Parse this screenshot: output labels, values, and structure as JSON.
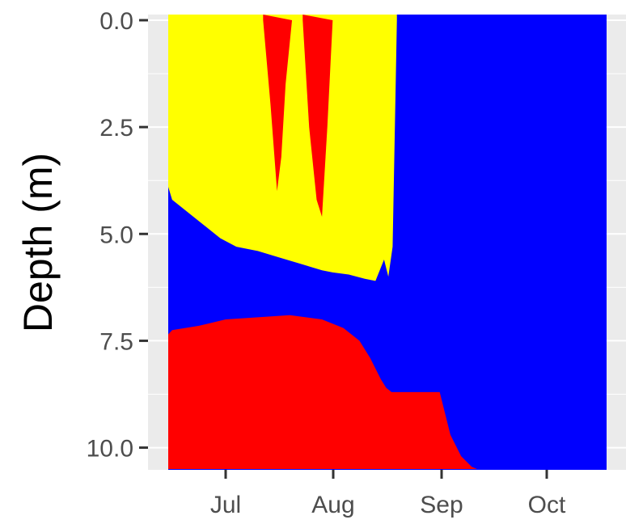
{
  "chart_data": {
    "type": "heatmap",
    "title": "",
    "xlabel": "",
    "ylabel": "Depth (m)",
    "y_reversed": true,
    "ylim": [
      0,
      10.5
    ],
    "y_ticks": [
      {
        "value": 0.0,
        "label": "0.0"
      },
      {
        "value": 2.5,
        "label": "2.5"
      },
      {
        "value": 5.0,
        "label": "5.0"
      },
      {
        "value": 7.5,
        "label": "7.5"
      },
      {
        "value": 10.0,
        "label": "10.0"
      }
    ],
    "x_ticks": [
      {
        "value": "Jul",
        "label": "Jul"
      },
      {
        "value": "Aug",
        "label": "Aug"
      },
      {
        "value": "Sep",
        "label": "Sep"
      },
      {
        "value": "Oct",
        "label": "Oct"
      }
    ],
    "x_range_months": [
      5.56,
      10.53
    ],
    "grid": true,
    "legend": "none",
    "colors": {
      "background_state": "#0000ff",
      "upper_state": "#ffff00",
      "hot_state": "#ff0000",
      "panel": "#ebebeb",
      "gridline": "#ffffff"
    },
    "regions": [
      {
        "color": "#ffff00",
        "description_type": "upper layer",
        "top_boundary_m": 0.0,
        "bottom_boundary": {
          "x_months": [
            5.78,
            5.8,
            5.86,
            5.95,
            6.05,
            6.2,
            6.35,
            6.5,
            6.65,
            6.8,
            6.95,
            7.1,
            7.3,
            7.5,
            7.7,
            7.9,
            8.0,
            8.15,
            8.3,
            8.4,
            8.48,
            8.52,
            8.56,
            8.6
          ],
          "depth_m": [
            0.6,
            0.8,
            1.6,
            2.5,
            3.1,
            3.6,
            3.9,
            4.2,
            4.5,
            4.8,
            5.1,
            5.3,
            5.4,
            5.55,
            5.7,
            5.85,
            5.9,
            5.95,
            6.05,
            6.1,
            5.6,
            6.0,
            5.3,
            0.0
          ]
        }
      },
      {
        "color": "#ff0000",
        "description_type": "surface spike",
        "x_months": [
          7.35,
          7.42,
          7.48,
          7.52,
          7.56,
          7.62
        ],
        "bottom_depth_m": [
          0.0,
          2.0,
          4.0,
          3.2,
          1.5,
          0.0
        ]
      },
      {
        "color": "#ff0000",
        "description_type": "surface spike",
        "x_months": [
          7.72,
          7.78,
          7.85,
          7.9,
          7.95,
          8.0
        ],
        "bottom_depth_m": [
          0.0,
          2.5,
          4.2,
          4.6,
          2.5,
          0.0
        ]
      },
      {
        "color": "#ff0000",
        "description_type": "bottom layer",
        "bottom_depth_m": 10.5,
        "top_boundary": {
          "x_months": [
            5.56,
            5.58,
            5.62,
            5.7,
            5.8,
            5.95,
            6.1,
            6.3,
            6.5,
            6.75,
            7.0,
            7.3,
            7.6,
            7.9,
            8.1,
            8.25,
            8.35,
            8.45,
            8.5,
            8.55,
            8.8,
            9.0,
            9.05,
            9.1,
            9.2,
            9.3,
            9.35
          ],
          "depth_m": [
            9.0,
            8.3,
            8.1,
            8.05,
            7.8,
            7.6,
            7.5,
            7.35,
            7.25,
            7.15,
            7.0,
            6.95,
            6.9,
            7.0,
            7.2,
            7.5,
            7.9,
            8.4,
            8.6,
            8.7,
            8.7,
            8.7,
            9.2,
            9.7,
            10.2,
            10.45,
            10.5
          ]
        }
      }
    ]
  }
}
